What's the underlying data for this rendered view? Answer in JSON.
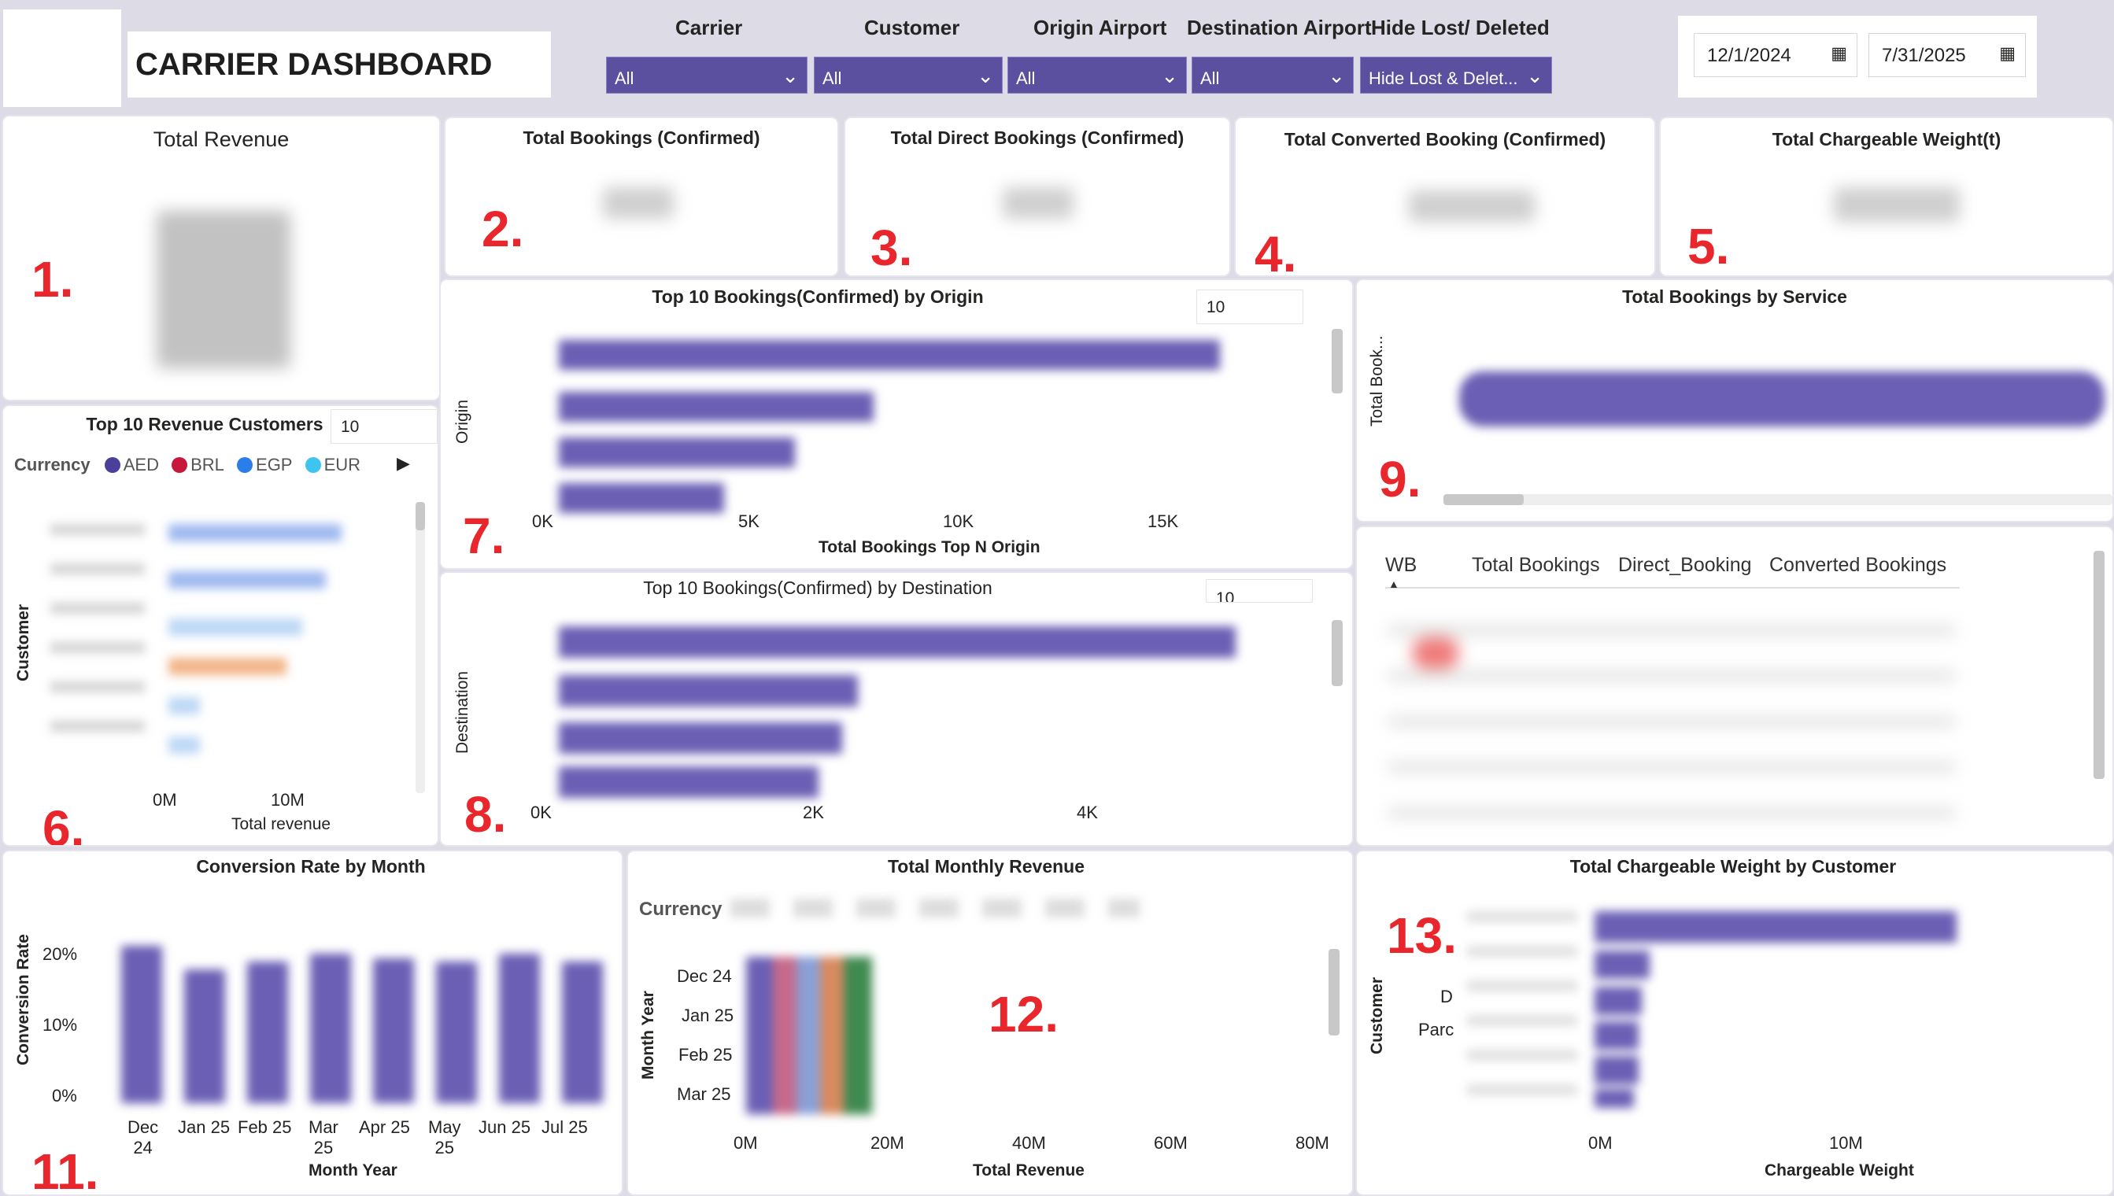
{
  "header": {
    "title": "CARRIER DASHBOARD",
    "filters": [
      {
        "label": "Carrier",
        "value": "All"
      },
      {
        "label": "Customer",
        "value": "All"
      },
      {
        "label": "Origin Airport",
        "value": "All"
      },
      {
        "label": "Destination Airport",
        "value": "All"
      },
      {
        "label": "Hide Lost/ Deleted",
        "value": "Hide Lost & Delet..."
      }
    ],
    "date_from": "12/1/2024",
    "date_to": "7/31/2025"
  },
  "annotations": [
    "1.",
    "2.",
    "3.",
    "4.",
    "5.",
    "6.",
    "7.",
    "8.",
    "9.",
    "11.",
    "12.",
    "13."
  ],
  "kpis": {
    "total_revenue": "Total Revenue",
    "bookings": "Total Bookings (Confirmed)",
    "direct": "Total Direct Bookings (Confirmed)",
    "converted": "Total Converted Booking (Confirmed)",
    "weight": "Total Chargeable Weight(t)"
  },
  "revenue_customers": {
    "title": "Top 10 Revenue Customers",
    "topn": "10",
    "legend_title": "Currency",
    "legend": [
      {
        "name": "AED",
        "color": "#4a3f9a"
      },
      {
        "name": "BRL",
        "color": "#c6183d"
      },
      {
        "name": "EGP",
        "color": "#2b7de9"
      },
      {
        "name": "EUR",
        "color": "#3fc4f0"
      }
    ],
    "ylabel": "Customer",
    "xlabel": "Total revenue",
    "xticks": [
      "0M",
      "10M"
    ]
  },
  "origin_chart": {
    "title": "Top 10 Bookings(Confirmed) by Origin",
    "topn": "10",
    "ylabel": "Origin",
    "xlabel": "Total Bookings Top N Origin",
    "xticks": [
      "0K",
      "5K",
      "10K",
      "15K"
    ]
  },
  "destination_chart": {
    "title": "Top 10 Bookings(Confirmed) by Destination",
    "topn": "10",
    "ylabel": "Destination",
    "xticks": [
      "0K",
      "2K",
      "4K"
    ]
  },
  "service_chart": {
    "title": "Total Bookings by Service",
    "ylabel": "Total Book..."
  },
  "wb_table": {
    "columns": [
      "WB",
      "Total Bookings",
      "Direct_Booking",
      "Converted Bookings"
    ]
  },
  "conversion_chart": {
    "title": "Conversion Rate by Month",
    "ylabel": "Conversion Rate",
    "xlabel": "Month Year",
    "yticks": [
      "20%",
      "10%",
      "0%"
    ],
    "xticks": [
      [
        "Dec",
        "24"
      ],
      [
        "Jan 25",
        ""
      ],
      [
        "Feb 25",
        ""
      ],
      [
        "Mar",
        "25"
      ],
      [
        "Apr 25",
        ""
      ],
      [
        "May",
        "25"
      ],
      [
        "Jun 25",
        ""
      ],
      [
        "Jul 25",
        ""
      ]
    ]
  },
  "monthly_revenue": {
    "title": "Total Monthly Revenue",
    "legend_title": "Currency",
    "ylabel": "Month Year",
    "xlabel": "Total Revenue",
    "yticks": [
      "Dec 24",
      "Jan 25",
      "Feb 25",
      "Mar 25"
    ],
    "xticks": [
      "0M",
      "20M",
      "40M",
      "60M",
      "80M"
    ]
  },
  "weight_chart": {
    "title": "Total Chargeable Weight by Customer",
    "ylabel": "Customer",
    "xlabel": "Chargeable Weight",
    "xticks": [
      "0M",
      "10M"
    ],
    "visible_labels": [
      "D",
      "Parc"
    ]
  }
}
